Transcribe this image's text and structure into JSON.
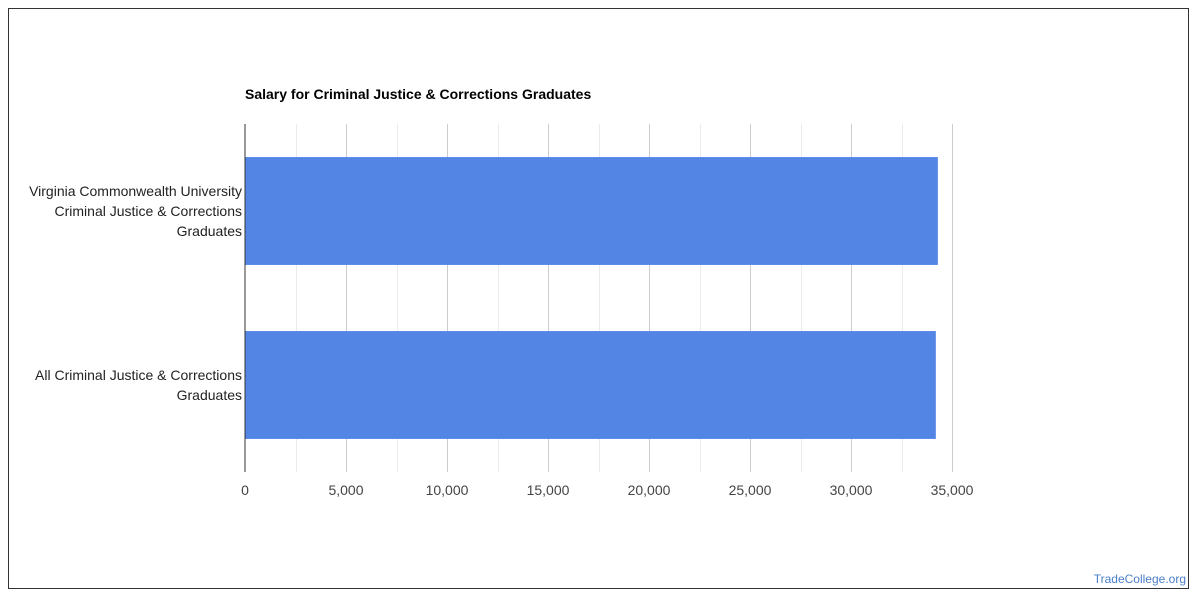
{
  "chart_data": {
    "type": "bar",
    "orientation": "horizontal",
    "title": "Salary for Criminal Justice & Corrections Graduates",
    "categories": [
      [
        "Virginia Commonwealth University",
        "Criminal Justice & Corrections",
        "Graduates"
      ],
      [
        "All Criminal Justice & Corrections",
        "Graduates"
      ]
    ],
    "values": [
      34300,
      34200
    ],
    "xlim": [
      0,
      35000
    ],
    "ticks": [
      0,
      5000,
      10000,
      15000,
      20000,
      25000,
      30000,
      35000
    ],
    "tick_labels": [
      "0",
      "5,000",
      "10,000",
      "15,000",
      "20,000",
      "25,000",
      "30,000",
      "35,000"
    ],
    "grid": true,
    "legend": "none",
    "bar_color": "#5386e4"
  },
  "watermark": "TradeCollege.org"
}
